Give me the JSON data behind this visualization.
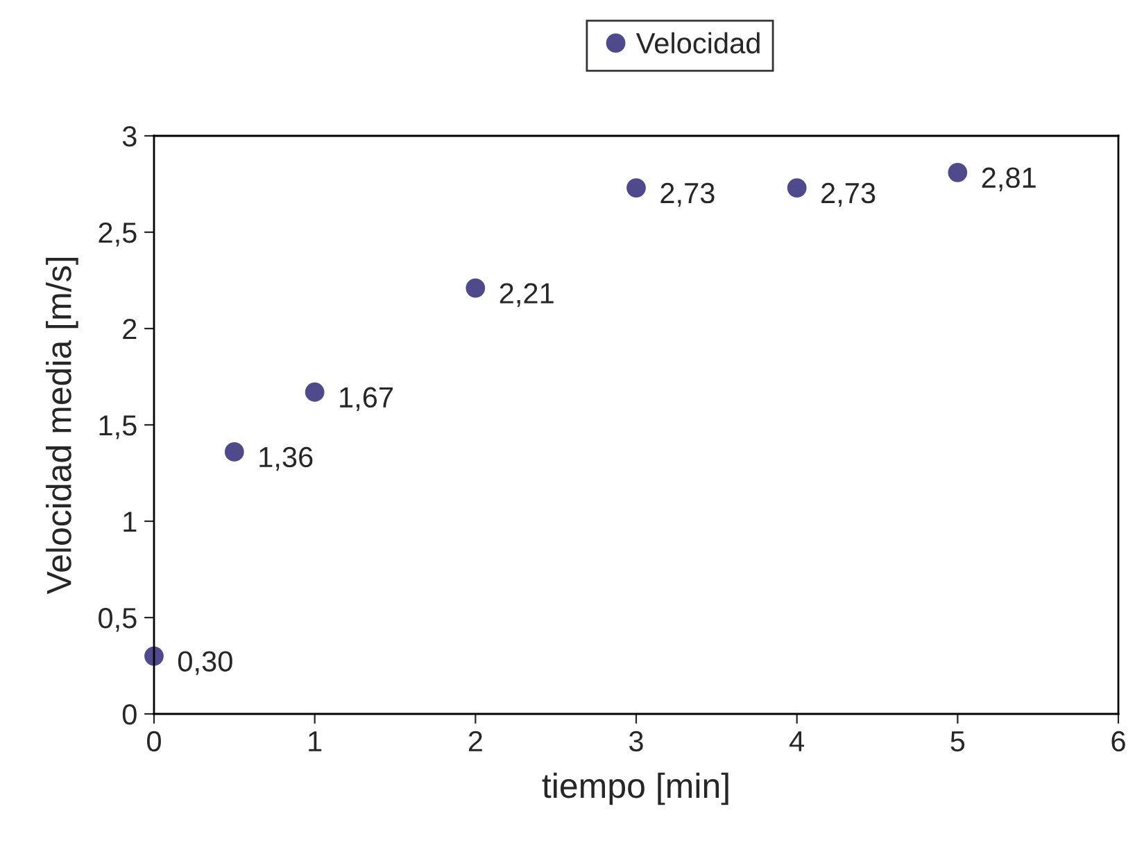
{
  "chart_data": {
    "type": "scatter",
    "xlabel": "tiempo [min]",
    "ylabel": "Velocidad media [m/s]",
    "x": [
      0,
      0.5,
      1,
      2,
      3,
      4,
      5
    ],
    "series": [
      {
        "name": "Velocidad",
        "color": "#4f4a8c",
        "values": [
          0.3,
          1.36,
          1.67,
          2.21,
          2.73,
          2.73,
          2.81
        ],
        "value_labels": [
          "0,30",
          "1,36",
          "1,67",
          "2,21",
          "2,73",
          "2,73",
          "2,81"
        ]
      }
    ],
    "xlim": [
      0,
      6
    ],
    "xticks": [
      0,
      1,
      2,
      3,
      4,
      5,
      6
    ],
    "ylim": [
      0,
      3
    ],
    "yticks": [
      0,
      {
        "value": 0.5,
        "label": "0,5"
      },
      1,
      {
        "value": 1.5,
        "label": "1,5"
      },
      2,
      {
        "value": 2.5,
        "label": "2,5"
      },
      3
    ],
    "grid": false,
    "legend": "top",
    "marker": "circle"
  }
}
